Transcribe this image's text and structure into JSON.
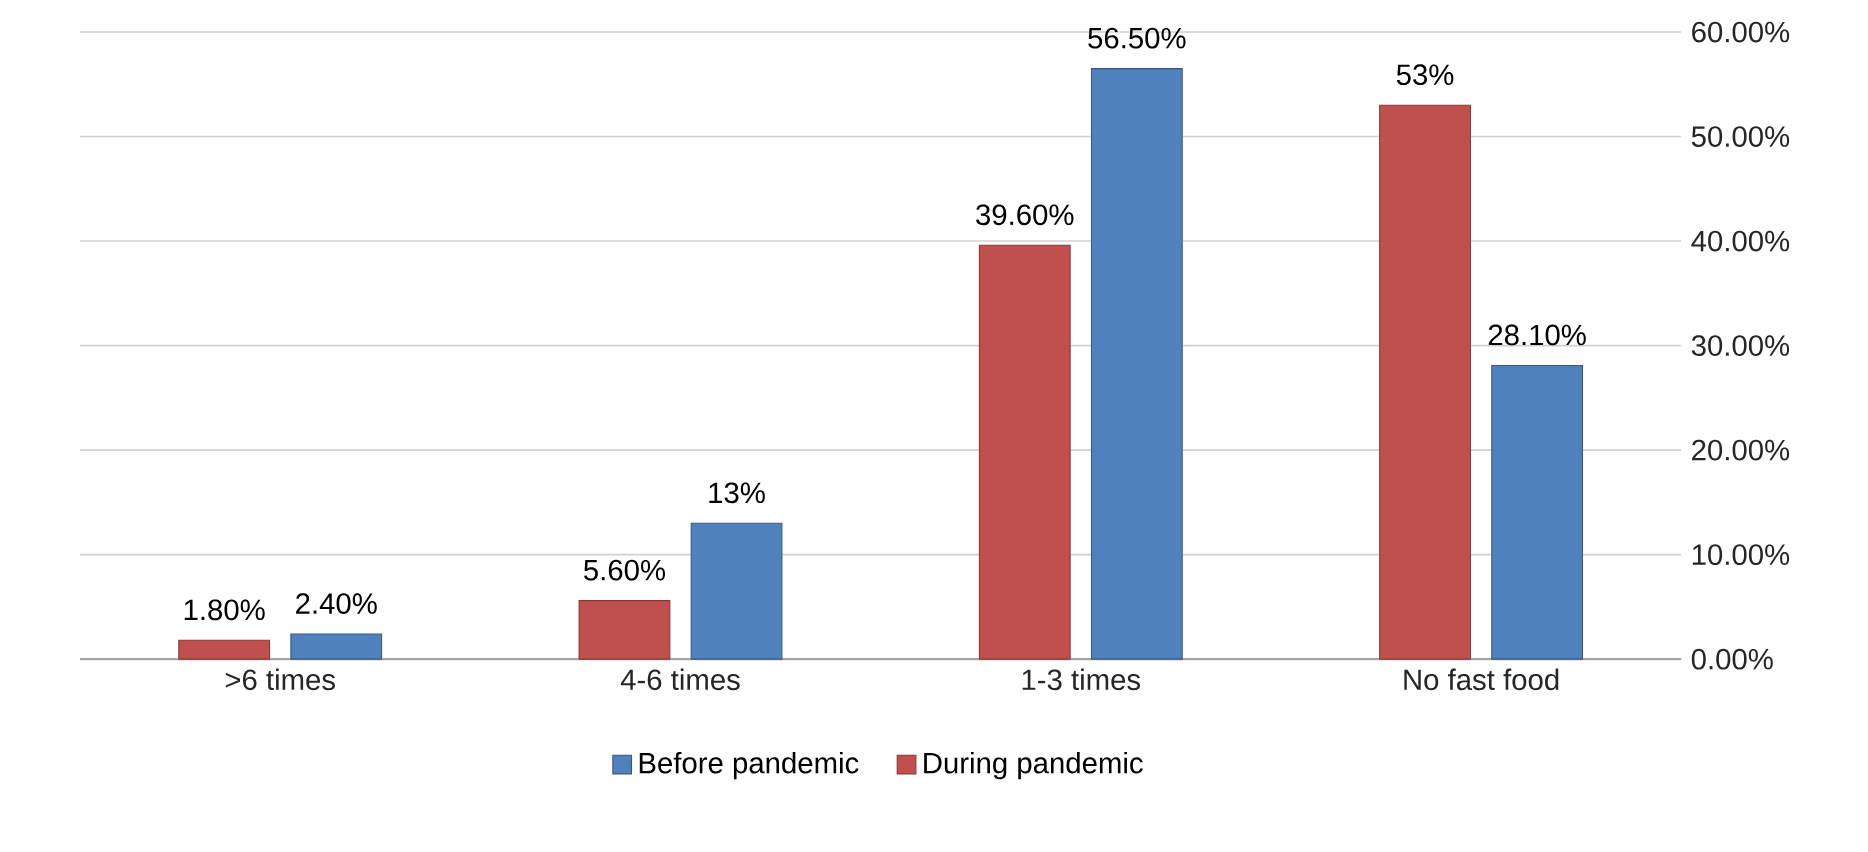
{
  "chart_data": {
    "type": "bar",
    "categories": [
      ">6 times",
      "4-6 times",
      "1-3 times",
      "No fast food"
    ],
    "series": [
      {
        "name": "During pandemic",
        "color": "#c0504d",
        "values": [
          1.8,
          5.6,
          39.6,
          53
        ],
        "value_labels": [
          "1.80%",
          "5.60%",
          "39.60%",
          "53%"
        ]
      },
      {
        "name": "Before pandemic",
        "color": "#4f81bd",
        "values": [
          2.4,
          13,
          56.5,
          28.1
        ],
        "value_labels": [
          "2.40%",
          "13%",
          "56.50%",
          "28.10%"
        ]
      }
    ],
    "ylim": [
      0,
      60
    ],
    "yticks": [
      {
        "value": 0,
        "label": "0.00%"
      },
      {
        "value": 10,
        "label": "10.00%"
      },
      {
        "value": 20,
        "label": "20.00%"
      },
      {
        "value": 30,
        "label": "30.00%"
      },
      {
        "value": 40,
        "label": "40.00%"
      },
      {
        "value": 50,
        "label": "50.00%"
      },
      {
        "value": 60,
        "label": "60.00%"
      }
    ],
    "grid": "y",
    "legend": "bottom"
  }
}
